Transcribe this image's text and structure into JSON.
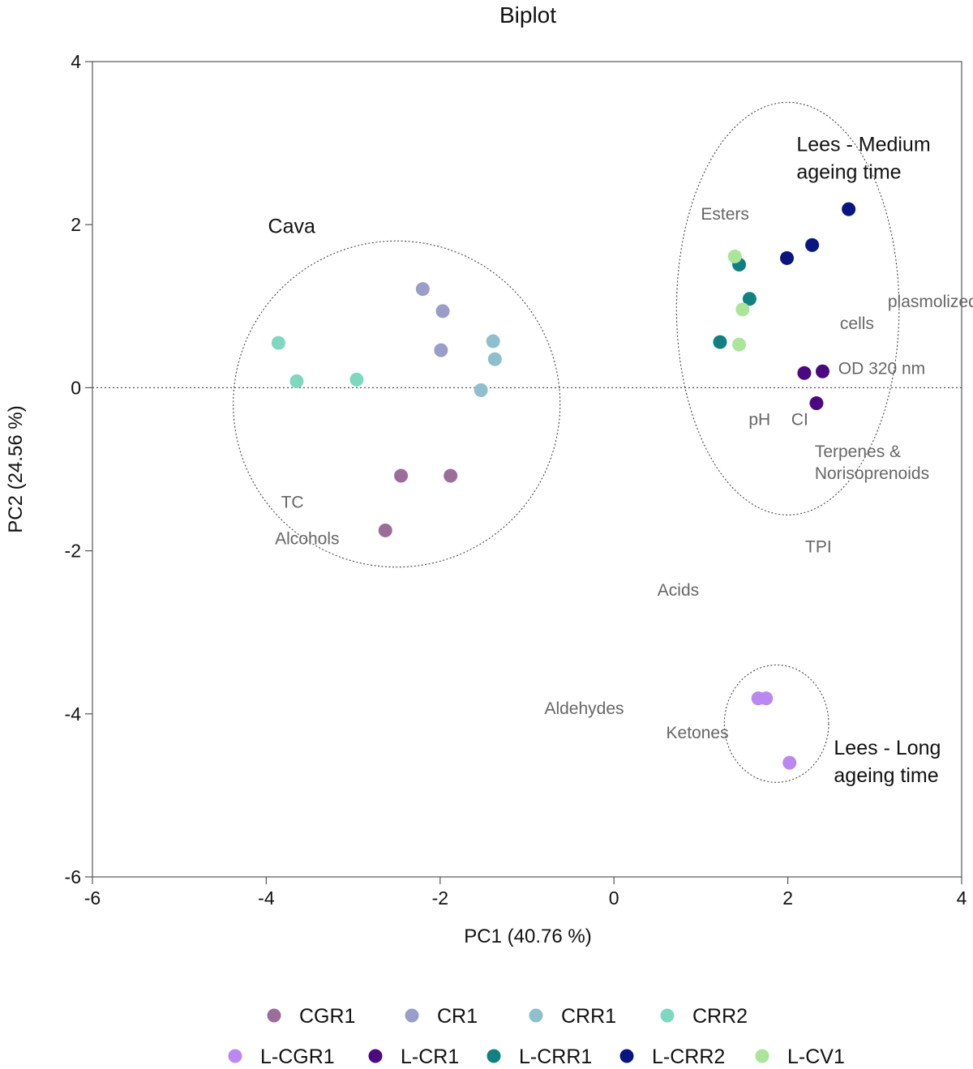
{
  "chart_data": {
    "type": "scatter",
    "title": "Biplot",
    "xlabel": "PC1 (40.76 %)",
    "ylabel": "PC2 (24.56 %)",
    "xlim": [
      -6,
      4
    ],
    "ylim": [
      -6,
      4
    ],
    "xticks": [
      -6,
      -4,
      -2,
      0,
      2,
      4
    ],
    "yticks": [
      -6,
      -4,
      -2,
      0,
      2,
      4
    ],
    "xtick_labels": [
      "-6",
      "-4",
      "-2",
      "0",
      "2",
      "4"
    ],
    "ytick_labels": [
      "-6",
      "-4",
      "-2",
      "0",
      "2",
      "4"
    ],
    "zero_line": true,
    "series": [
      {
        "name": "CGR1",
        "color": "#9a6d9a",
        "points": [
          [
            -2.45,
            -1.08
          ],
          [
            -1.88,
            -1.08
          ],
          [
            -2.63,
            -1.75
          ]
        ]
      },
      {
        "name": "CR1",
        "color": "#9a9dc8",
        "points": [
          [
            -2.2,
            1.21
          ],
          [
            -1.97,
            0.94
          ],
          [
            -1.99,
            0.46
          ]
        ]
      },
      {
        "name": "CRR1",
        "color": "#8fbfcc",
        "points": [
          [
            -1.39,
            0.57
          ],
          [
            -1.37,
            0.35
          ],
          [
            -1.53,
            -0.03
          ]
        ]
      },
      {
        "name": "CRR2",
        "color": "#7dd8bf",
        "points": [
          [
            -3.86,
            0.55
          ],
          [
            -3.65,
            0.08
          ],
          [
            -2.96,
            0.1
          ]
        ]
      },
      {
        "name": "L-CGR1",
        "color": "#bb88f2",
        "points": [
          [
            1.66,
            -3.81
          ],
          [
            1.75,
            -3.81
          ],
          [
            2.02,
            -4.6
          ]
        ]
      },
      {
        "name": "L-CR1",
        "color": "#4b0880",
        "points": [
          [
            2.19,
            0.18
          ],
          [
            2.4,
            0.2
          ],
          [
            2.33,
            -0.19
          ]
        ]
      },
      {
        "name": "L-CRR1",
        "color": "#118080",
        "points": [
          [
            1.44,
            1.51
          ],
          [
            1.56,
            1.09
          ],
          [
            1.22,
            0.56
          ]
        ]
      },
      {
        "name": "L-CRR2",
        "color": "#0a1580",
        "points": [
          [
            2.7,
            2.19
          ],
          [
            2.28,
            1.75
          ],
          [
            1.99,
            1.59
          ]
        ]
      },
      {
        "name": "L-CV1",
        "color": "#abe59a",
        "points": [
          [
            1.39,
            1.61
          ],
          [
            1.48,
            0.96
          ],
          [
            1.44,
            0.53
          ]
        ]
      }
    ],
    "variables": [
      {
        "label": "Esters",
        "x": 1.0,
        "y": 2.06
      },
      {
        "label": "plasmolized",
        "x": 3.15,
        "y": 0.99
      },
      {
        "label": "cells",
        "x": 2.6,
        "y": 0.72
      },
      {
        "label": "OD 320 nm",
        "x": 2.58,
        "y": 0.17
      },
      {
        "label": "pH",
        "x": 1.55,
        "y": -0.46
      },
      {
        "label": "CI",
        "x": 2.04,
        "y": -0.46
      },
      {
        "label": "Terpenes &",
        "x": 2.31,
        "y": -0.85
      },
      {
        "label": "Norisoprenoids",
        "x": 2.31,
        "y": -1.12
      },
      {
        "label": "TC",
        "x": -3.83,
        "y": -1.47
      },
      {
        "label": "Alcohols",
        "x": -3.9,
        "y": -1.92
      },
      {
        "label": "TPI",
        "x": 2.2,
        "y": -2.02
      },
      {
        "label": "Acids",
        "x": 0.5,
        "y": -2.55
      },
      {
        "label": "Aldehydes",
        "x": -0.8,
        "y": -4.0
      },
      {
        "label": "Ketones",
        "x": 0.6,
        "y": -4.3
      }
    ],
    "groups": [
      {
        "lines": [
          "Cava"
        ],
        "x": -3.98,
        "y": 1.9,
        "ellipse": {
          "cx": -2.5,
          "cy": -0.2,
          "rx": 1.88,
          "ry": 2.0
        }
      },
      {
        "lines": [
          "Lees - Medium",
          "ageing time"
        ],
        "x": 2.1,
        "y": 2.9,
        "ellipse": {
          "cx": 2.0,
          "cy": 0.97,
          "rx": 1.28,
          "ry": 2.53
        }
      },
      {
        "lines": [
          "Lees - Long",
          "ageing time"
        ],
        "x": 2.53,
        "y": -4.5,
        "ellipse": {
          "cx": 1.87,
          "cy": -4.12,
          "rx": 0.6,
          "ry": 0.72
        }
      }
    ],
    "legend_position": "bottom"
  }
}
